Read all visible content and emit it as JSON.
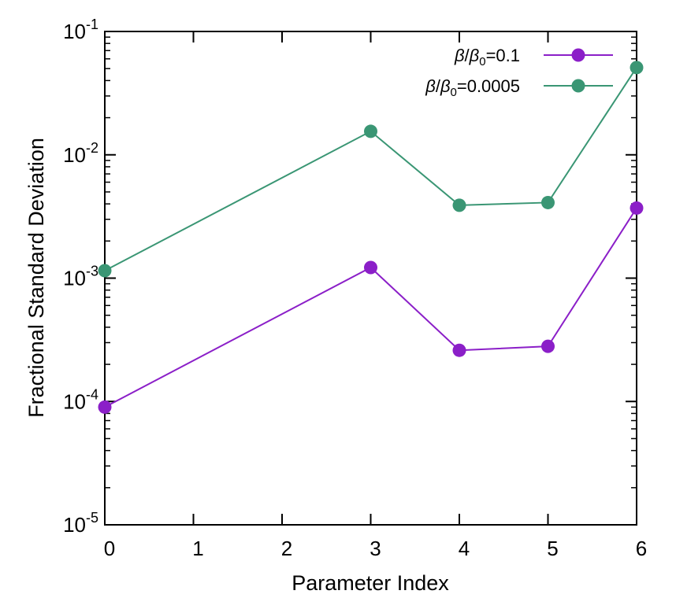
{
  "chart_data": {
    "type": "line",
    "title": "",
    "xlabel": "Parameter Index",
    "ylabel": "Fractional Standard Deviation",
    "x_scale": "linear",
    "y_scale": "log",
    "xlim": [
      0,
      6
    ],
    "ylim": [
      1e-05,
      0.1
    ],
    "x_ticks": [
      0,
      1,
      2,
      3,
      4,
      5,
      6
    ],
    "x_tick_labels": [
      "0",
      "1",
      "2",
      "3",
      "4",
      "5",
      "6"
    ],
    "y_ticks": [
      {
        "value": 1e-05,
        "base": "10",
        "exp": "-5"
      },
      {
        "value": 0.0001,
        "base": "10",
        "exp": "-4"
      },
      {
        "value": 0.001,
        "base": "10",
        "exp": "-3"
      },
      {
        "value": 0.01,
        "base": "10",
        "exp": "-2"
      },
      {
        "value": 0.1,
        "base": "10",
        "exp": "-1"
      }
    ],
    "grid": false,
    "legend_position": "top-right",
    "series": [
      {
        "name": "β/β₀=0.1",
        "legend_parts": {
          "beta": "β",
          "slash": "/",
          "beta0": "β",
          "sub": "0",
          "value": "=0.1"
        },
        "color": "#8b1fc8",
        "x": [
          0,
          3,
          4,
          5,
          6
        ],
        "y": [
          9e-05,
          0.00122,
          0.00026,
          0.00028,
          0.0037
        ]
      },
      {
        "name": "β/β₀=0.0005",
        "legend_parts": {
          "beta": "β",
          "slash": "/",
          "beta0": "β",
          "sub": "0",
          "value": "=0.0005"
        },
        "color": "#3a9674",
        "x": [
          0,
          3,
          4,
          5,
          6
        ],
        "y": [
          0.00115,
          0.0155,
          0.0039,
          0.0041,
          0.051
        ]
      }
    ]
  }
}
